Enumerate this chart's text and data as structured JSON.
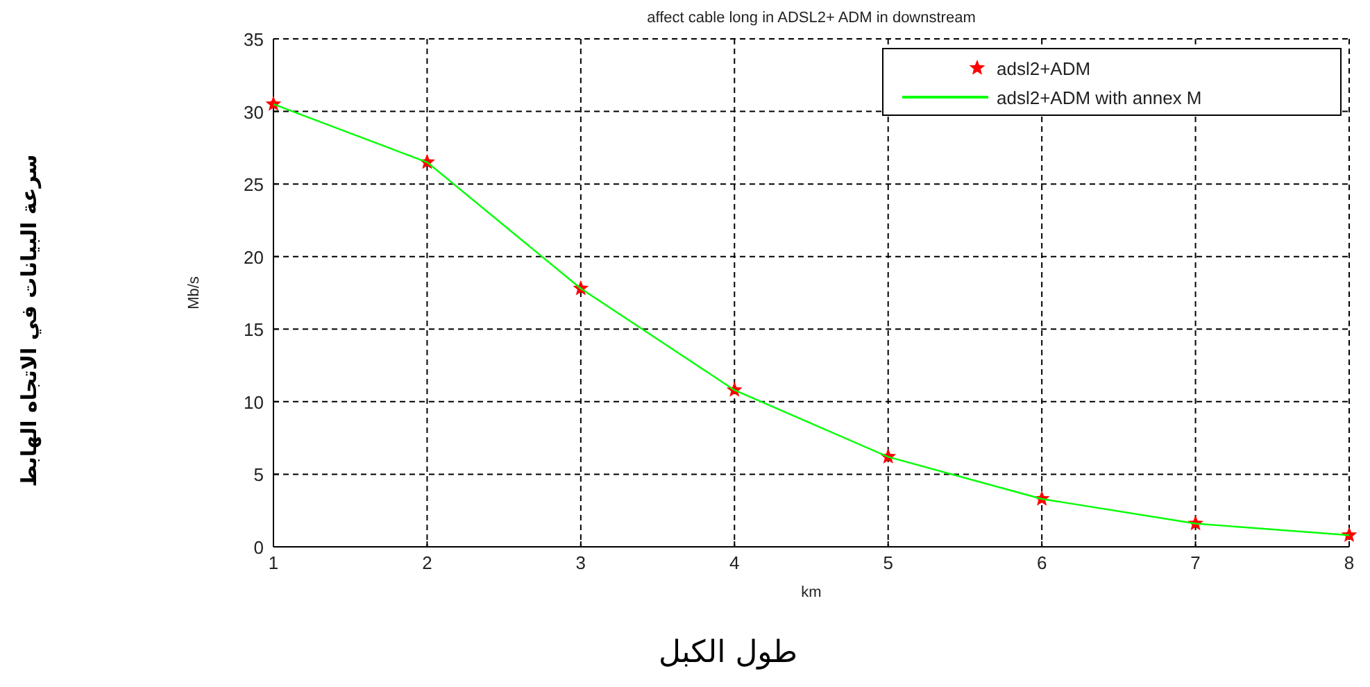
{
  "chart_data": {
    "type": "line",
    "title": "affect cable long in ADSL2+ ADM  in downstream",
    "xlabel": "km",
    "ylabel": "Mb/s",
    "annotations": [
      "طول الكبل",
      "سرعة البيانات في الاتجاه الهابط"
    ],
    "x": [
      1,
      2,
      3,
      4,
      5,
      6,
      7,
      8
    ],
    "series": [
      {
        "name": "adsl2+ADM",
        "type": "scatter",
        "marker": "star",
        "color": "#ff0000",
        "values": [
          30.5,
          26.5,
          17.8,
          10.8,
          6.2,
          3.3,
          1.6,
          0.8
        ]
      },
      {
        "name": "adsl2+ADM with annex M",
        "color": "#00ff00",
        "values": [
          30.5,
          26.5,
          17.8,
          10.8,
          6.2,
          3.3,
          1.6,
          0.8
        ]
      }
    ],
    "xlim": [
      1,
      8
    ],
    "xticks": [
      1,
      2,
      3,
      4,
      5,
      6,
      7,
      8
    ],
    "ylim": [
      0,
      35
    ],
    "yticks": [
      0,
      5,
      10,
      15,
      20,
      25,
      30,
      35
    ],
    "grid": true,
    "legend": "top right"
  }
}
